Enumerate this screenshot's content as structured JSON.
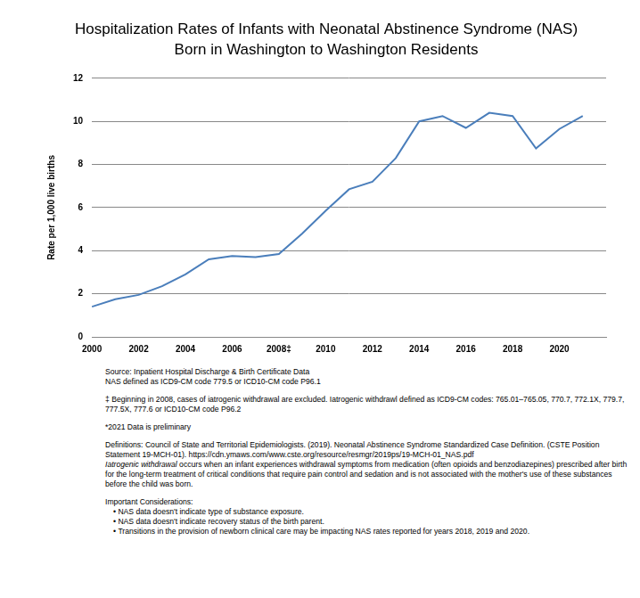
{
  "chart_data": {
    "type": "line",
    "title": [
      "Hospitalization Rates of Infants with Neonatal Abstinence Syndrome (NAS)",
      "Born in Washington to Washington Residents"
    ],
    "y_label": "Rate per 1,000 live births",
    "x": [
      2000,
      2001,
      2002,
      2003,
      2004,
      2005,
      2006,
      2007,
      2008,
      2009,
      2010,
      2011,
      2012,
      2013,
      2014,
      2015,
      2016,
      2017,
      2018,
      2019,
      2020,
      2021
    ],
    "values": [
      1.4,
      1.75,
      1.95,
      2.35,
      2.9,
      3.6,
      3.75,
      3.7,
      3.85,
      4.8,
      5.85,
      6.85,
      7.2,
      8.3,
      10.0,
      10.25,
      9.7,
      10.4,
      10.25,
      8.75,
      9.65,
      10.25
    ],
    "color": "#4a7ebb",
    "marker": "none",
    "line_style": "solid",
    "xlim": [
      2000,
      2022
    ],
    "xticks": [
      2000,
      2002,
      2004,
      2006,
      {
        "value": 2008,
        "label": "2008‡"
      },
      2010,
      2012,
      2014,
      2016,
      2018,
      2020
    ],
    "ylim": [
      0,
      12
    ],
    "yticks": [
      0,
      2,
      4,
      6,
      8,
      10,
      12
    ],
    "grid": true,
    "notes": [
      {
        "lines": [
          "Source:  Inpatient Hospital Discharge & Birth Certificate Data",
          "NAS defined as ICD9-CM code 779.5 or ICD10-CM code P96.1"
        ]
      },
      {
        "lines": [
          "‡ Beginning in 2008, cases of iatrogenic withdrawal are excluded. Iatrogenic withdrawl defined as ICD9-CM codes: 765.01–765.05, 770.7, 772.1X, 779.7, 777.5X, 777.6 or ICD10-CM code P96.2"
        ]
      },
      {
        "lines": [
          "*2021 Data is preliminary"
        ]
      },
      {
        "lines": [
          "Definitions: Council of State and Territorial Epidemiologists. (2019). Neonatal Abstinence Syndrome Standardized Case Definition. (CSTE Position Statement 19-MCH-01). https://cdn.ymaws.com/www.cste.org/resource/resmgr/2019ps/19-MCH-01_NAS.pdf"
        ],
        "term": "Iatrogenic withdrawal",
        "term_text": " occurs when an infant experiences withdrawal symptoms from medication (often opioids and benzodiazepines) prescribed after birth for the long-term treatment of critical conditions that require pain control and sedation and is not associated with the mother's use of these substances before the child was born."
      },
      {
        "heading": "Important Considerations:",
        "bullets": [
          "NAS data doesn't indicate type of substance exposure.",
          "NAS data doesn't indicate recovery status of the birth parent.",
          "Transitions in the provision of newborn clinical care may be impacting NAS rates reported for years 2018, 2019 and 2020."
        ]
      }
    ]
  }
}
